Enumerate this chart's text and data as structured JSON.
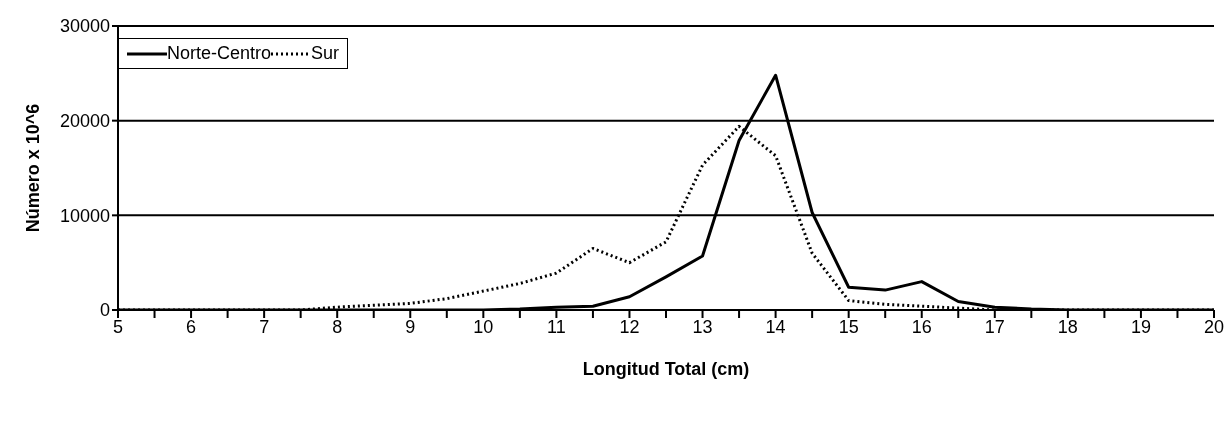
{
  "chart_data": {
    "type": "line",
    "xlabel": "Longitud Total (cm)",
    "ylabel": "Número x 10^6",
    "categories": [
      "5",
      null,
      "6",
      null,
      "7",
      null,
      "8",
      null,
      "9",
      null,
      "10",
      null,
      "11",
      null,
      "12",
      null,
      "13",
      null,
      "14",
      null,
      "15",
      null,
      "16",
      null,
      "17",
      null,
      "18",
      null,
      "19",
      null,
      "20"
    ],
    "series": [
      {
        "name": "Norte-Centro",
        "color": "#000000",
        "line_style": "solid",
        "values": [
          0,
          0,
          0,
          0,
          0,
          0,
          0,
          0,
          0,
          0,
          0,
          100,
          300,
          400,
          1400,
          3500,
          5700,
          17900,
          24800,
          10300,
          2400,
          2100,
          3000,
          900,
          300,
          100,
          0,
          0,
          0,
          0,
          0
        ]
      },
      {
        "name": "Sur",
        "color": "#000000",
        "line_style": "dotted",
        "values": [
          0,
          0,
          0,
          0,
          0,
          0,
          300,
          500,
          700,
          1200,
          2000,
          2800,
          3900,
          6500,
          5000,
          7200,
          15300,
          19400,
          16300,
          6000,
          1000,
          600,
          400,
          200,
          0,
          0,
          0,
          0,
          0,
          0,
          0
        ]
      }
    ],
    "ylim": [
      0,
      30000
    ],
    "yticks": [
      0,
      10000,
      20000,
      30000
    ],
    "grid": "y",
    "legend": "top left",
    "marker": "none"
  }
}
